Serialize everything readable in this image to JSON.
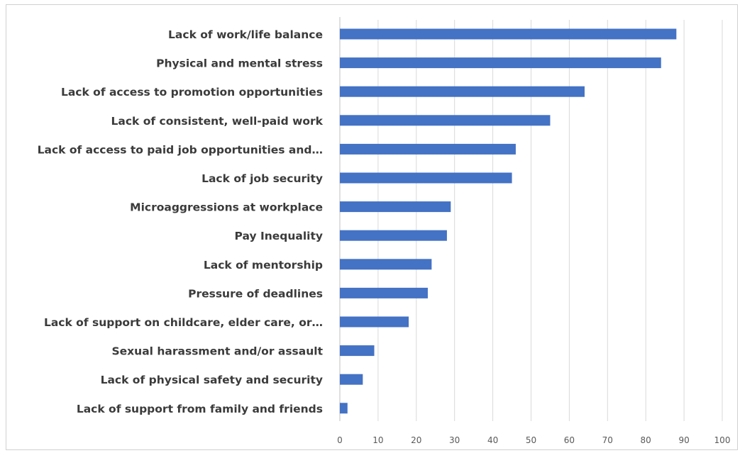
{
  "chart_data": {
    "type": "bar",
    "orientation": "horizontal",
    "categories": [
      "Lack of work/life balance",
      "Physical and mental stress",
      "Lack of access to promotion opportunities",
      "Lack of consistent, well-paid work",
      "Lack of access to paid job opportunities and…",
      "Lack of job security",
      "Microaggressions at workplace",
      "Pay Inequality",
      "Lack of mentorship",
      "Pressure of deadlines",
      "Lack of support on childcare, elder care, or…",
      "Sexual harassment and/or assault",
      "Lack of physical safety and security",
      "Lack of support from family and friends"
    ],
    "values": [
      88,
      84,
      64,
      55,
      46,
      45,
      29,
      28,
      24,
      23,
      18,
      9,
      6,
      2
    ],
    "xlim": [
      0,
      100
    ],
    "xticks": [
      "0",
      "10",
      "20",
      "30",
      "40",
      "50",
      "60",
      "70",
      "80",
      "90",
      "100"
    ],
    "grid": "vertical",
    "bar_color": "#4472c4",
    "title": "",
    "xlabel": "",
    "ylabel": ""
  }
}
